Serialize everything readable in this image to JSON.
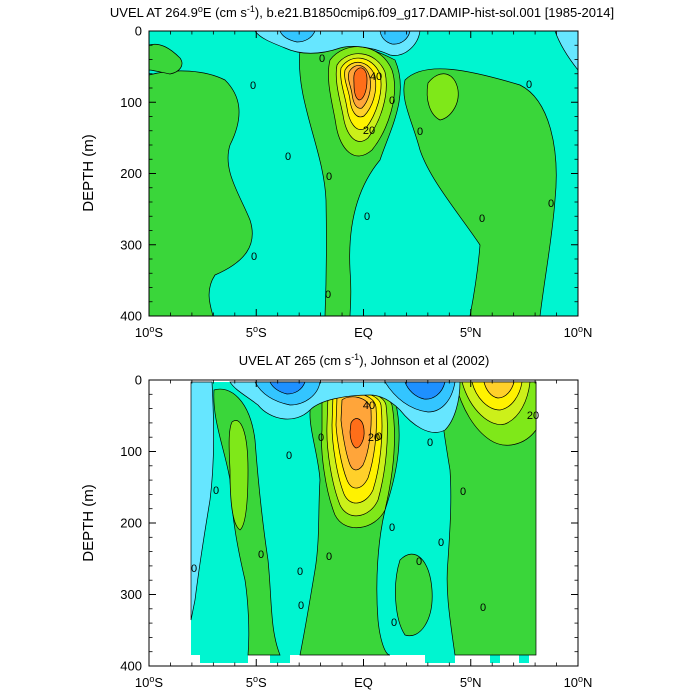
{
  "palette": {
    "neg3": "#1e90ff",
    "neg2": "#33c5ff",
    "neg1": "#66e6ff",
    "zero": "#00f5d0",
    "pos1": "#3ad63a",
    "pos2": "#7fe819",
    "pos3": "#ccf01a",
    "pos4": "#fff200",
    "pos5": "#ffd02a",
    "pos6": "#ffa53a",
    "pos7": "#ff6e19",
    "background": "#ffffff",
    "axis": "#000000"
  },
  "chart_data": [
    {
      "type": "contour",
      "title_main": "UVEL AT 264.9",
      "title_sup": "o",
      "title_rest": "E (cm s",
      "title_unit_sup": "-1",
      "title_tail": "), b.e21.B1850cmip6.f09_g17.DAMIP-hist-sol.001 [1985-2014]",
      "ylabel": "DEPTH (m)",
      "xlim": [
        -10,
        10
      ],
      "ylim": [
        400,
        0
      ],
      "xticks": [
        {
          "value": -10,
          "label": "10",
          "sup": "o",
          "suffix": "S"
        },
        {
          "value": -5,
          "label": "5",
          "sup": "o",
          "suffix": "S"
        },
        {
          "value": 0,
          "label": "EQ",
          "sup": "",
          "suffix": ""
        },
        {
          "value": 5,
          "label": "5",
          "sup": "o",
          "suffix": "N"
        },
        {
          "value": 10,
          "label": "10",
          "sup": "o",
          "suffix": "N"
        }
      ],
      "yticks": [
        "0",
        "100",
        "200",
        "300",
        "400"
      ],
      "contour_labels": [
        "0",
        "0",
        "0",
        "0",
        "0",
        "0",
        "0",
        "0",
        "0",
        "0",
        "0",
        "0",
        "20",
        "40"
      ]
    },
    {
      "type": "contour",
      "title_main": "UVEL AT 265 (cm s",
      "title_unit_sup": "-1",
      "title_tail": "), Johnson et al (2002)",
      "ylabel": "DEPTH (m)",
      "xlim": [
        -10,
        10
      ],
      "ylim": [
        400,
        0
      ],
      "xticks": [
        {
          "value": -10,
          "label": "10",
          "sup": "o",
          "suffix": "S"
        },
        {
          "value": -5,
          "label": "5",
          "sup": "o",
          "suffix": "S"
        },
        {
          "value": 0,
          "label": "EQ",
          "sup": "",
          "suffix": ""
        },
        {
          "value": 5,
          "label": "5",
          "sup": "o",
          "suffix": "N"
        },
        {
          "value": 10,
          "label": "10",
          "sup": "o",
          "suffix": "N"
        }
      ],
      "yticks": [
        "0",
        "100",
        "200",
        "300",
        "400"
      ],
      "contour_labels": [
        "0",
        "0",
        "0",
        "0",
        "0",
        "0",
        "0",
        "0",
        "0",
        "0",
        "0",
        "0",
        "0",
        "0",
        "0",
        "0",
        "20",
        "40",
        "20"
      ]
    }
  ]
}
